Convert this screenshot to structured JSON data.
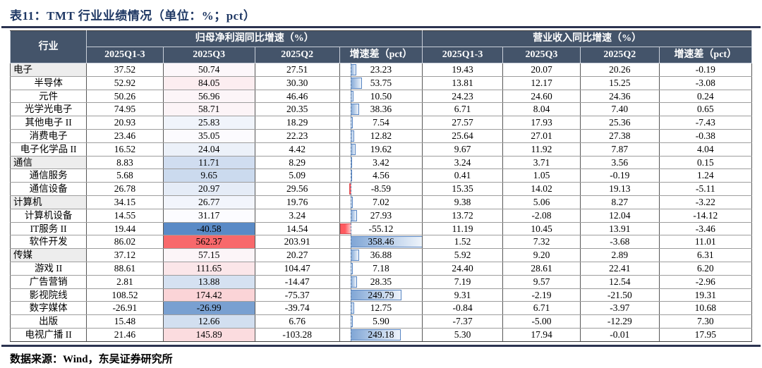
{
  "title": "表11：TMT 行业业绩情况（单位：%；pct）",
  "source_note": "数据来源：Wind，东吴证券研究所",
  "colors": {
    "header_bg": "#44546A",
    "header_text": "#FFFFFF",
    "title_text": "#1F3864",
    "rule": "#2B3350",
    "parent_row_bg": "#EDEDED",
    "axis": "#5B7DA8"
  },
  "formatting": {
    "colorscale": {
      "applies_to": "profit_q3_column",
      "min": -40.58,
      "mid": 31.17,
      "max": 562.37,
      "min_color": "#5A8AC6",
      "mid_color": "#FCFCFF",
      "max_color": "#F8696B"
    },
    "databar": {
      "applies_to": "profit_diff_column",
      "min": -55.12,
      "max": 358.46,
      "pos_color": "#7FA5D5",
      "pos_border": "#5885C2",
      "neg_color": "#FF5A5F",
      "neg_border": "#D94F54"
    }
  },
  "table": {
    "corner_header": "行业",
    "groups": [
      {
        "label": "归母净利润同比增速（%）",
        "columns": [
          "2025Q1-3",
          "2025Q3",
          "2025Q2",
          "增速差（pct）"
        ]
      },
      {
        "label": "营业收入同比增速（%）",
        "columns": [
          "2025Q1-3",
          "2025Q3",
          "2025Q2",
          "增速差（pct）"
        ]
      }
    ],
    "rows": [
      {
        "industry": "电子",
        "level": 0,
        "profit": [
          "37.52",
          "50.74",
          "27.51",
          "23.23"
        ],
        "revenue": [
          "19.43",
          "20.07",
          "20.26",
          "-0.19"
        ]
      },
      {
        "industry": "半导体",
        "level": 1,
        "profit": [
          "52.92",
          "84.05",
          "30.30",
          "53.75"
        ],
        "revenue": [
          "13.81",
          "12.17",
          "15.25",
          "-3.08"
        ]
      },
      {
        "industry": "元件",
        "level": 1,
        "profit": [
          "50.26",
          "56.96",
          "46.46",
          "10.50"
        ],
        "revenue": [
          "24.23",
          "24.60",
          "24.36",
          "0.24"
        ]
      },
      {
        "industry": "光学光电子",
        "level": 1,
        "profit": [
          "74.95",
          "58.71",
          "20.35",
          "38.36"
        ],
        "revenue": [
          "6.71",
          "8.04",
          "7.40",
          "0.65"
        ]
      },
      {
        "industry": "其他电子 II",
        "level": 1,
        "profit": [
          "20.93",
          "25.83",
          "18.29",
          "7.54"
        ],
        "revenue": [
          "27.57",
          "17.93",
          "25.36",
          "-7.43"
        ]
      },
      {
        "industry": "消费电子",
        "level": 1,
        "profit": [
          "23.46",
          "35.05",
          "22.23",
          "12.82"
        ],
        "revenue": [
          "25.64",
          "27.01",
          "27.38",
          "-0.38"
        ]
      },
      {
        "industry": "电子化学品 II",
        "level": 1,
        "profit": [
          "16.52",
          "24.04",
          "4.42",
          "19.62"
        ],
        "revenue": [
          "9.67",
          "11.92",
          "7.87",
          "4.04"
        ]
      },
      {
        "industry": "通信",
        "level": 0,
        "profit": [
          "8.83",
          "11.71",
          "8.29",
          "3.42"
        ],
        "revenue": [
          "3.24",
          "3.71",
          "3.56",
          "0.15"
        ]
      },
      {
        "industry": "通信服务",
        "level": 1,
        "profit": [
          "5.68",
          "9.65",
          "5.09",
          "4.56"
        ],
        "revenue": [
          "0.41",
          "1.05",
          "-0.19",
          "1.24"
        ]
      },
      {
        "industry": "通信设备",
        "level": 1,
        "profit": [
          "26.78",
          "20.97",
          "29.56",
          "-8.59"
        ],
        "revenue": [
          "15.35",
          "14.02",
          "19.13",
          "-5.11"
        ]
      },
      {
        "industry": "计算机",
        "level": 0,
        "profit": [
          "34.15",
          "26.77",
          "19.76",
          "7.02"
        ],
        "revenue": [
          "9.38",
          "5.06",
          "8.27",
          "-3.22"
        ]
      },
      {
        "industry": "计算机设备",
        "level": 1,
        "profit": [
          "14.55",
          "31.17",
          "3.24",
          "27.93"
        ],
        "revenue": [
          "13.72",
          "-2.08",
          "12.04",
          "-14.12"
        ]
      },
      {
        "industry": "IT服务 II",
        "level": 1,
        "profit": [
          "19.44",
          "-40.58",
          "14.54",
          "-55.12"
        ],
        "revenue": [
          "11.19",
          "10.45",
          "13.91",
          "-3.46"
        ]
      },
      {
        "industry": "软件开发",
        "level": 1,
        "profit": [
          "86.02",
          "562.37",
          "203.91",
          "358.46"
        ],
        "revenue": [
          "1.52",
          "7.32",
          "-3.68",
          "11.01"
        ]
      },
      {
        "industry": "传媒",
        "level": 0,
        "profit": [
          "37.12",
          "57.15",
          "20.27",
          "36.88"
        ],
        "revenue": [
          "5.92",
          "9.20",
          "2.89",
          "6.31"
        ]
      },
      {
        "industry": "游戏 II",
        "level": 1,
        "profit": [
          "88.61",
          "111.65",
          "104.47",
          "7.18"
        ],
        "revenue": [
          "24.40",
          "28.61",
          "22.41",
          "6.20"
        ]
      },
      {
        "industry": "广告营销",
        "level": 1,
        "profit": [
          "2.81",
          "13.88",
          "-14.47",
          "28.35"
        ],
        "revenue": [
          "7.19",
          "9.57",
          "12.54",
          "-2.96"
        ]
      },
      {
        "industry": "影视院线",
        "level": 1,
        "profit": [
          "108.52",
          "174.42",
          "-75.37",
          "249.79"
        ],
        "revenue": [
          "9.31",
          "-2.19",
          "-21.50",
          "19.31"
        ]
      },
      {
        "industry": "数字媒体",
        "level": 1,
        "profit": [
          "-26.91",
          "-26.99",
          "-39.74",
          "12.75"
        ],
        "revenue": [
          "-0.84",
          "6.71",
          "-3.97",
          "10.68"
        ]
      },
      {
        "industry": "出版",
        "level": 1,
        "profit": [
          "15.48",
          "12.66",
          "6.76",
          "5.90"
        ],
        "revenue": [
          "-7.37",
          "-5.00",
          "-12.29",
          "7.30"
        ]
      },
      {
        "industry": "电视广播 II",
        "level": 1,
        "profit": [
          "21.46",
          "145.89",
          "-103.28",
          "249.18"
        ],
        "revenue": [
          "5.30",
          "17.94",
          "-0.01",
          "17.95"
        ]
      }
    ]
  }
}
